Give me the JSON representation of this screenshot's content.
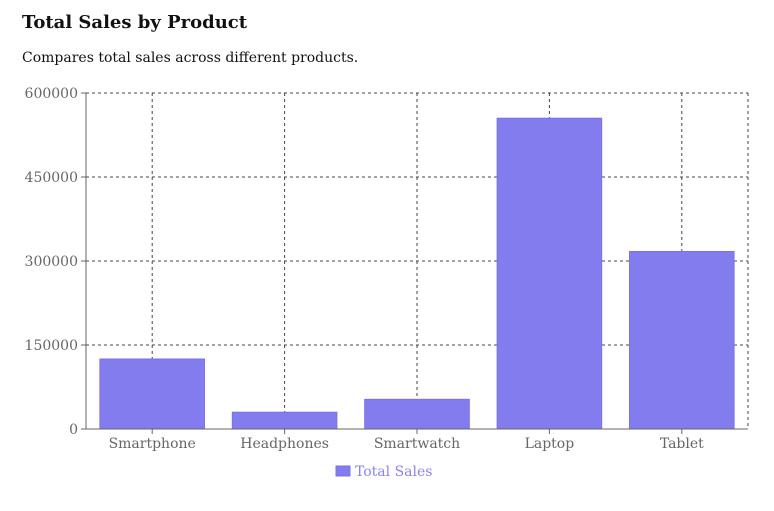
{
  "header": {
    "title": "Total Sales by Product",
    "subtitle": "Compares total sales across different products."
  },
  "colors": {
    "bar": "#837cee",
    "bar_stroke": "#7a72e6",
    "grid": "#444444",
    "tick_text": "#666666",
    "legend_text": "#8b83ee"
  },
  "chart_data": {
    "type": "bar",
    "title": "Total Sales by Product",
    "subtitle": "Compares total sales across different products.",
    "categories": [
      "Smartphone",
      "Headphones",
      "Smartwatch",
      "Laptop",
      "Tablet"
    ],
    "series": [
      {
        "name": "Total Sales",
        "values": [
          125000,
          30000,
          53000,
          555000,
          317000
        ]
      }
    ],
    "ylim": [
      0,
      600000
    ],
    "yticks": [
      0,
      150000,
      300000,
      450000,
      600000
    ],
    "ytick_labels": [
      "0",
      "150000",
      "300000",
      "450000",
      "600000"
    ],
    "xlabel": "",
    "ylabel": "",
    "grid": true,
    "grid_style": "dashed",
    "legend_position": "bottom-center"
  }
}
